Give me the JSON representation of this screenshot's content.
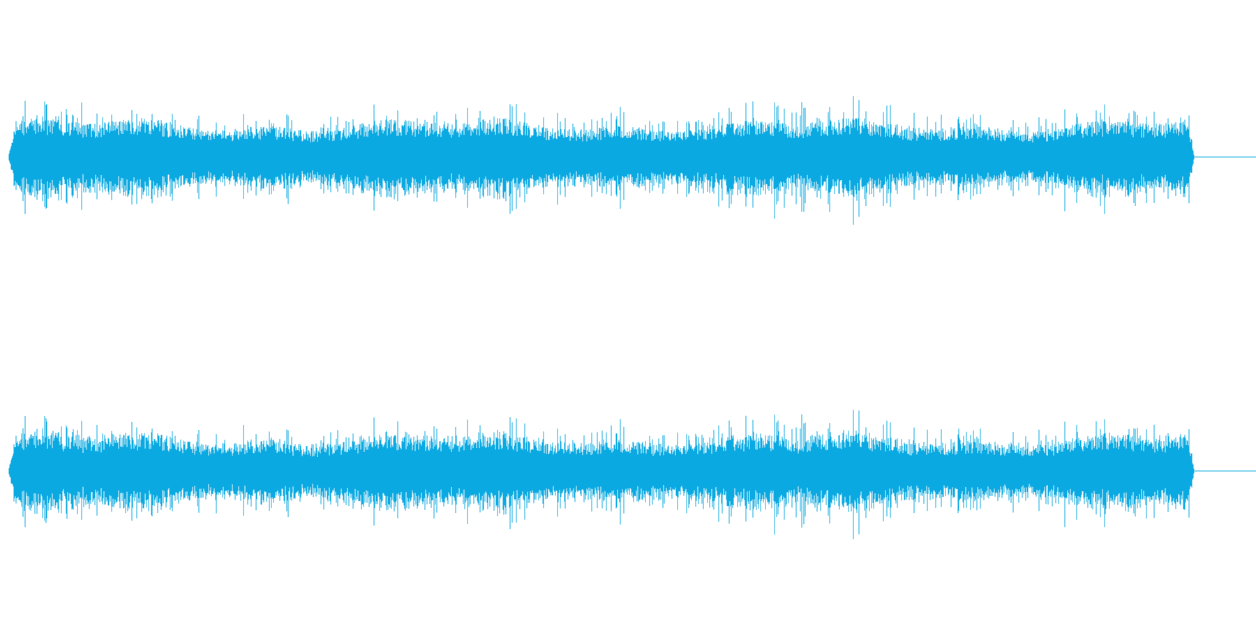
{
  "waveform": {
    "color": "#0aa9e2",
    "background": "#ffffff",
    "channel_count": 2,
    "channels": [
      {
        "id": "left",
        "trailing_silence": true
      },
      {
        "id": "right",
        "trailing_silence": true
      }
    ]
  }
}
